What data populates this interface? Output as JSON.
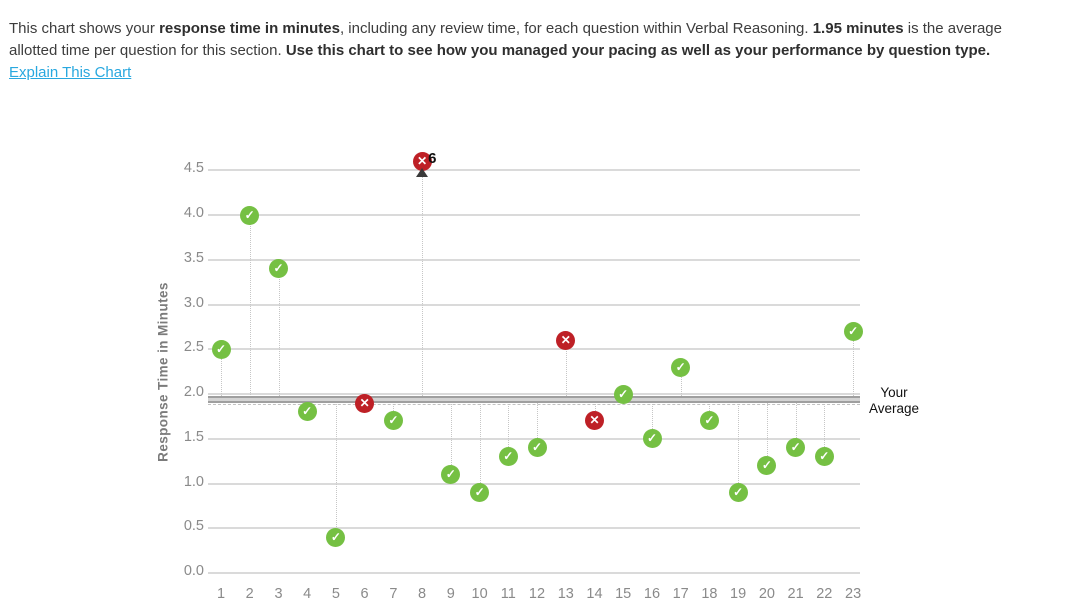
{
  "header": {
    "parts": [
      {
        "t": "This chart shows your ",
        "bold": false
      },
      {
        "t": "response time in minutes",
        "bold": true
      },
      {
        "t": ", including any review time, for each question within Verbal Reasoning. ",
        "bold": false
      },
      {
        "t": "1.95 minutes",
        "bold": true
      },
      {
        "t": " is the average allotted time per question for this section. ",
        "bold": false
      },
      {
        "t": "Use this chart to see how you managed your pacing as well as your performance by question type.",
        "bold": true
      },
      {
        "t": " ",
        "bold": false
      }
    ],
    "link_label": "Explain This Chart",
    "link_color": "#29a8df"
  },
  "chart": {
    "average_label_line1": "Your",
    "average_label_line2": "Average"
  },
  "chart_data": {
    "type": "scatter",
    "title": "",
    "xlabel": "",
    "ylabel": "Response Time in Minutes",
    "ylim": [
      0,
      4.5
    ],
    "yticks": [
      0.0,
      0.5,
      1.0,
      1.5,
      2.0,
      2.5,
      3.0,
      3.5,
      4.0,
      4.5
    ],
    "grid": "horizontal",
    "average_line": 1.95,
    "average_label": "Your Average",
    "icons": {
      "check": "✓",
      "x": "✕"
    },
    "colors": {
      "correct": "#75c043",
      "incorrect": "#be2026",
      "grid": "#dadada",
      "axis_text": "#8a8a8a",
      "average_band": "#9f9f9f",
      "stem": "#c6c6c6"
    },
    "points": [
      {
        "q": 1,
        "minutes": 2.5,
        "icon": "check"
      },
      {
        "q": 2,
        "minutes": 4.0,
        "icon": "check"
      },
      {
        "q": 3,
        "minutes": 3.4,
        "icon": "check"
      },
      {
        "q": 4,
        "minutes": 1.8,
        "icon": "check"
      },
      {
        "q": 5,
        "minutes": 0.4,
        "icon": "check"
      },
      {
        "q": 6,
        "minutes": 1.9,
        "icon": "x"
      },
      {
        "q": 7,
        "minutes": 1.7,
        "icon": "check"
      },
      {
        "q": 8,
        "minutes": 6,
        "icon": "x",
        "clipped": true,
        "plotted_at": 4.6,
        "label": "6"
      },
      {
        "q": 9,
        "minutes": 1.1,
        "icon": "check"
      },
      {
        "q": 10,
        "minutes": 0.9,
        "icon": "check"
      },
      {
        "q": 11,
        "minutes": 1.3,
        "icon": "check"
      },
      {
        "q": 12,
        "minutes": 1.4,
        "icon": "check"
      },
      {
        "q": 13,
        "minutes": 2.6,
        "icon": "x"
      },
      {
        "q": 14,
        "minutes": 1.7,
        "icon": "x"
      },
      {
        "q": 15,
        "minutes": 2.0,
        "icon": "check"
      },
      {
        "q": 16,
        "minutes": 1.5,
        "icon": "check"
      },
      {
        "q": 17,
        "minutes": 2.3,
        "icon": "check"
      },
      {
        "q": 18,
        "minutes": 1.7,
        "icon": "check"
      },
      {
        "q": 19,
        "minutes": 0.9,
        "icon": "check"
      },
      {
        "q": 20,
        "minutes": 1.2,
        "icon": "check"
      },
      {
        "q": 21,
        "minutes": 1.4,
        "icon": "check"
      },
      {
        "q": 22,
        "minutes": 1.3,
        "icon": "check"
      },
      {
        "q": 23,
        "minutes": 2.7,
        "icon": "check"
      }
    ]
  }
}
